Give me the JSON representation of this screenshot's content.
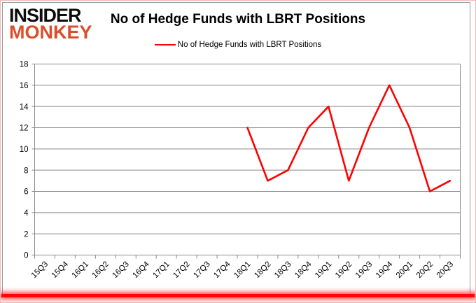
{
  "logo": {
    "line1": "INSIDER",
    "line2": "MONKEY"
  },
  "title": "No of Hedge Funds with LBRT Positions",
  "legend": {
    "label": "No of Hedge Funds with LBRT Positions"
  },
  "colors": {
    "line": "#fe0000",
    "grid": "#8a8a8a",
    "text": "#000000",
    "logo_accent": "#da4e2b",
    "frame_pink": "#f1b6b6",
    "bottom_glow": "#ff0404"
  },
  "chart_data": {
    "type": "line",
    "title": "No of Hedge Funds with LBRT Positions",
    "categories": [
      "15Q3",
      "15Q4",
      "16Q1",
      "16Q2",
      "16Q3",
      "16Q4",
      "17Q1",
      "17Q2",
      "17Q3",
      "17Q4",
      "18Q1",
      "18Q2",
      "18Q3",
      "18Q4",
      "19Q1",
      "19Q2",
      "19Q3",
      "19Q4",
      "20Q1",
      "20Q2",
      "20Q3"
    ],
    "series": [
      {
        "name": "No of Hedge Funds with LBRT Positions",
        "color": "#fe0000",
        "values": [
          null,
          null,
          null,
          null,
          null,
          null,
          null,
          null,
          null,
          null,
          12,
          7,
          8,
          12,
          14,
          7,
          12,
          16,
          12,
          6,
          7
        ]
      }
    ],
    "xlabel": "",
    "ylabel": "",
    "ylim": [
      0,
      18
    ],
    "ytick_step": 2,
    "grid": true,
    "legend_position": "top"
  }
}
